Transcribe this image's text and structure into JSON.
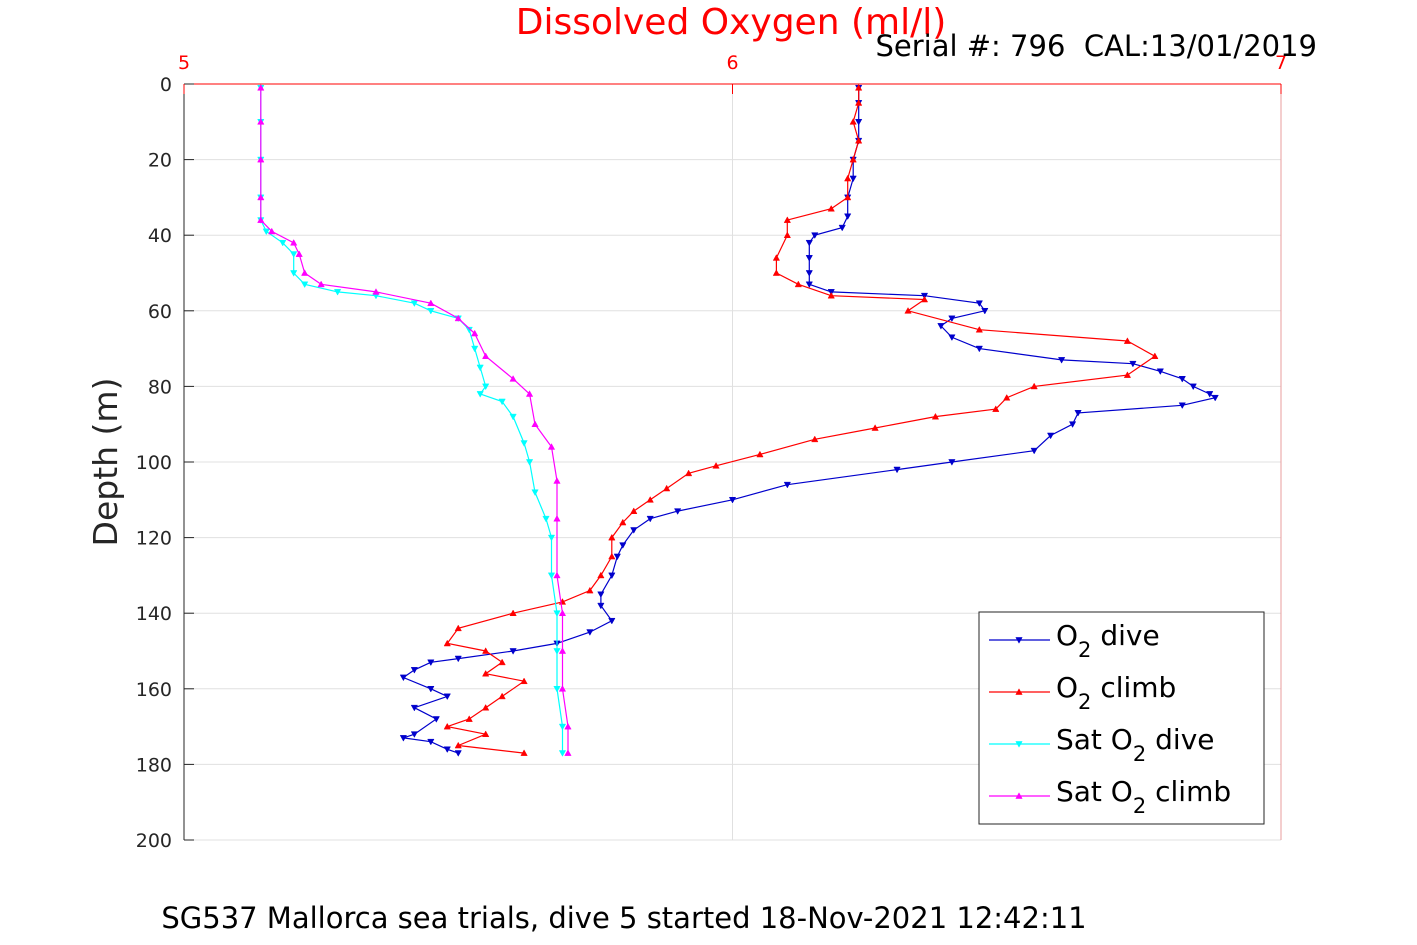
{
  "chart_data": {
    "type": "line",
    "title": "Dissolved Oxygen (ml/l)",
    "annotation": "Serial #: 796  CAL:13/01/2019",
    "bottom_title": "SG537 Mallorca sea trials, dive 5 started 18-Nov-2021 12:42:11",
    "xlabel": "",
    "ylabel": "Depth (m)",
    "xlim": [
      5,
      7
    ],
    "ylim": [
      0,
      200
    ],
    "y_reversed": true,
    "x_axis_position": "top",
    "grid": true,
    "legend_position": "bottom-right",
    "x_ticks": [
      5,
      6,
      7
    ],
    "x_tick_labels": [
      "5",
      "6",
      "7"
    ],
    "y_ticks": [
      0,
      20,
      40,
      60,
      80,
      100,
      120,
      140,
      160,
      180,
      200
    ],
    "y_tick_labels": [
      "0",
      "20",
      "40",
      "60",
      "80",
      "100",
      "120",
      "140",
      "160",
      "180",
      "200"
    ],
    "colors": {
      "x_axis": "#ff0000",
      "y_axis": "#262626",
      "grid": "#e0e0e0"
    },
    "series": [
      {
        "name": "O₂ dive",
        "legend_main": "O",
        "legend_sub": "2",
        "legend_after": " dive",
        "color": "#0000cc",
        "marker": "triangle-down",
        "points": [
          [
            6.23,
            1
          ],
          [
            6.23,
            5
          ],
          [
            6.23,
            10
          ],
          [
            6.23,
            15
          ],
          [
            6.22,
            20
          ],
          [
            6.22,
            25
          ],
          [
            6.21,
            30
          ],
          [
            6.21,
            35
          ],
          [
            6.2,
            38
          ],
          [
            6.15,
            40
          ],
          [
            6.14,
            42
          ],
          [
            6.14,
            46
          ],
          [
            6.14,
            50
          ],
          [
            6.14,
            53
          ],
          [
            6.18,
            55
          ],
          [
            6.35,
            56
          ],
          [
            6.45,
            58
          ],
          [
            6.46,
            60
          ],
          [
            6.4,
            62
          ],
          [
            6.38,
            64
          ],
          [
            6.4,
            67
          ],
          [
            6.45,
            70
          ],
          [
            6.6,
            73
          ],
          [
            6.73,
            74
          ],
          [
            6.78,
            76
          ],
          [
            6.82,
            78
          ],
          [
            6.84,
            80
          ],
          [
            6.87,
            82
          ],
          [
            6.88,
            83
          ],
          [
            6.82,
            85
          ],
          [
            6.63,
            87
          ],
          [
            6.62,
            90
          ],
          [
            6.58,
            93
          ],
          [
            6.55,
            97
          ],
          [
            6.4,
            100
          ],
          [
            6.3,
            102
          ],
          [
            6.1,
            106
          ],
          [
            6.0,
            110
          ],
          [
            5.9,
            113
          ],
          [
            5.85,
            115
          ],
          [
            5.82,
            118
          ],
          [
            5.8,
            122
          ],
          [
            5.79,
            125
          ],
          [
            5.78,
            130
          ],
          [
            5.76,
            135
          ],
          [
            5.76,
            138
          ],
          [
            5.78,
            142
          ],
          [
            5.74,
            145
          ],
          [
            5.68,
            148
          ],
          [
            5.6,
            150
          ],
          [
            5.5,
            152
          ],
          [
            5.45,
            153
          ],
          [
            5.42,
            155
          ],
          [
            5.4,
            157
          ],
          [
            5.45,
            160
          ],
          [
            5.48,
            162
          ],
          [
            5.42,
            165
          ],
          [
            5.46,
            168
          ],
          [
            5.42,
            172
          ],
          [
            5.4,
            173
          ],
          [
            5.45,
            174
          ],
          [
            5.48,
            176
          ],
          [
            5.5,
            177
          ]
        ]
      },
      {
        "name": "O₂ climb",
        "legend_main": "O",
        "legend_sub": "2",
        "legend_after": " climb",
        "color": "#ff0000",
        "marker": "triangle-up",
        "points": [
          [
            6.23,
            1
          ],
          [
            6.23,
            5
          ],
          [
            6.22,
            10
          ],
          [
            6.23,
            15
          ],
          [
            6.22,
            20
          ],
          [
            6.21,
            25
          ],
          [
            6.21,
            30
          ],
          [
            6.18,
            33
          ],
          [
            6.1,
            36
          ],
          [
            6.1,
            40
          ],
          [
            6.08,
            46
          ],
          [
            6.08,
            50
          ],
          [
            6.12,
            53
          ],
          [
            6.18,
            56
          ],
          [
            6.35,
            57
          ],
          [
            6.32,
            60
          ],
          [
            6.45,
            65
          ],
          [
            6.72,
            68
          ],
          [
            6.77,
            72
          ],
          [
            6.72,
            77
          ],
          [
            6.55,
            80
          ],
          [
            6.5,
            83
          ],
          [
            6.48,
            86
          ],
          [
            6.37,
            88
          ],
          [
            6.26,
            91
          ],
          [
            6.15,
            94
          ],
          [
            6.05,
            98
          ],
          [
            5.97,
            101
          ],
          [
            5.92,
            103
          ],
          [
            5.88,
            107
          ],
          [
            5.85,
            110
          ],
          [
            5.82,
            113
          ],
          [
            5.8,
            116
          ],
          [
            5.78,
            120
          ],
          [
            5.78,
            125
          ],
          [
            5.76,
            130
          ],
          [
            5.74,
            134
          ],
          [
            5.69,
            137
          ],
          [
            5.6,
            140
          ],
          [
            5.5,
            144
          ],
          [
            5.48,
            148
          ],
          [
            5.55,
            150
          ],
          [
            5.58,
            153
          ],
          [
            5.55,
            156
          ],
          [
            5.62,
            158
          ],
          [
            5.58,
            162
          ],
          [
            5.55,
            165
          ],
          [
            5.52,
            168
          ],
          [
            5.48,
            170
          ],
          [
            5.55,
            172
          ],
          [
            5.5,
            175
          ],
          [
            5.62,
            177
          ]
        ]
      },
      {
        "name": "Sat O₂ dive",
        "legend_main": "Sat O",
        "legend_sub": "2",
        "legend_after": " dive",
        "color": "#00ffff",
        "marker": "triangle-down",
        "points": [
          [
            5.14,
            1
          ],
          [
            5.14,
            10
          ],
          [
            5.14,
            20
          ],
          [
            5.14,
            30
          ],
          [
            5.14,
            36
          ],
          [
            5.15,
            39
          ],
          [
            5.18,
            42
          ],
          [
            5.2,
            45
          ],
          [
            5.2,
            50
          ],
          [
            5.22,
            53
          ],
          [
            5.28,
            55
          ],
          [
            5.35,
            56
          ],
          [
            5.42,
            58
          ],
          [
            5.45,
            60
          ],
          [
            5.5,
            62
          ],
          [
            5.52,
            65
          ],
          [
            5.53,
            70
          ],
          [
            5.54,
            75
          ],
          [
            5.55,
            80
          ],
          [
            5.54,
            82
          ],
          [
            5.58,
            84
          ],
          [
            5.6,
            88
          ],
          [
            5.62,
            95
          ],
          [
            5.63,
            100
          ],
          [
            5.64,
            108
          ],
          [
            5.66,
            115
          ],
          [
            5.67,
            120
          ],
          [
            5.67,
            130
          ],
          [
            5.68,
            140
          ],
          [
            5.68,
            150
          ],
          [
            5.68,
            160
          ],
          [
            5.69,
            170
          ],
          [
            5.69,
            177
          ]
        ]
      },
      {
        "name": "Sat O₂ climb",
        "legend_main": "Sat O",
        "legend_sub": "2",
        "legend_after": " climb",
        "color": "#ff00ff",
        "marker": "triangle-up",
        "points": [
          [
            5.14,
            1
          ],
          [
            5.14,
            10
          ],
          [
            5.14,
            20
          ],
          [
            5.14,
            30
          ],
          [
            5.14,
            36
          ],
          [
            5.16,
            39
          ],
          [
            5.2,
            42
          ],
          [
            5.21,
            45
          ],
          [
            5.22,
            50
          ],
          [
            5.25,
            53
          ],
          [
            5.35,
            55
          ],
          [
            5.45,
            58
          ],
          [
            5.5,
            62
          ],
          [
            5.53,
            66
          ],
          [
            5.55,
            72
          ],
          [
            5.6,
            78
          ],
          [
            5.63,
            82
          ],
          [
            5.64,
            90
          ],
          [
            5.67,
            96
          ],
          [
            5.68,
            105
          ],
          [
            5.68,
            115
          ],
          [
            5.68,
            130
          ],
          [
            5.69,
            140
          ],
          [
            5.69,
            150
          ],
          [
            5.69,
            160
          ],
          [
            5.7,
            170
          ],
          [
            5.7,
            177
          ]
        ]
      }
    ]
  }
}
